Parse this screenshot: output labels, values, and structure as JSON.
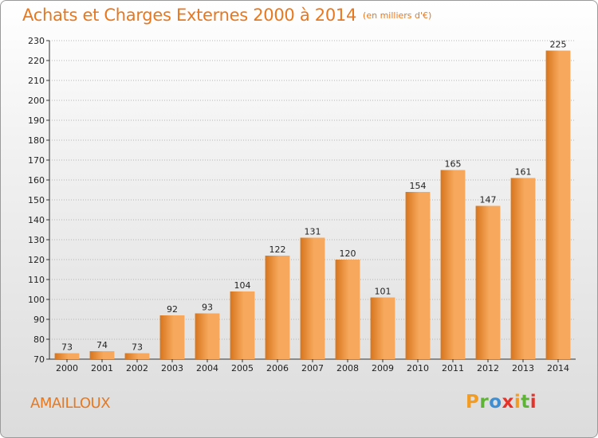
{
  "header": {
    "title": "Achats et Charges Externes 2000 à 2014",
    "subtitle": "(en milliers d'€)"
  },
  "footer": {
    "town": "AMAILLOUX",
    "logo": [
      "P",
      "r",
      "o",
      "x",
      "i",
      "t",
      "i"
    ]
  },
  "colors": {
    "accent": "#e8781f",
    "bar_light": "#f7a85c",
    "bar_dark": "#d7751d",
    "logo": [
      "#f39c1f",
      "#5fb336",
      "#3d8ed3",
      "#e5332a",
      "#f39c1f",
      "#5fb336",
      "#e5332a"
    ]
  },
  "chart_data": {
    "type": "bar",
    "categories": [
      "2000",
      "2001",
      "2002",
      "2003",
      "2004",
      "2005",
      "2006",
      "2007",
      "2008",
      "2009",
      "2010",
      "2011",
      "2012",
      "2013",
      "2014"
    ],
    "values": [
      73,
      74,
      73,
      92,
      93,
      104,
      122,
      131,
      120,
      101,
      154,
      165,
      147,
      161,
      225
    ],
    "title": "Achats et Charges Externes 2000 à 2014",
    "subtitle": "(en milliers d'€)",
    "ylim": [
      70,
      230
    ],
    "yticks": [
      70,
      80,
      90,
      100,
      110,
      120,
      130,
      140,
      150,
      160,
      170,
      180,
      190,
      200,
      210,
      220,
      230
    ],
    "grid": "horizontal dotted",
    "legend": "none"
  }
}
